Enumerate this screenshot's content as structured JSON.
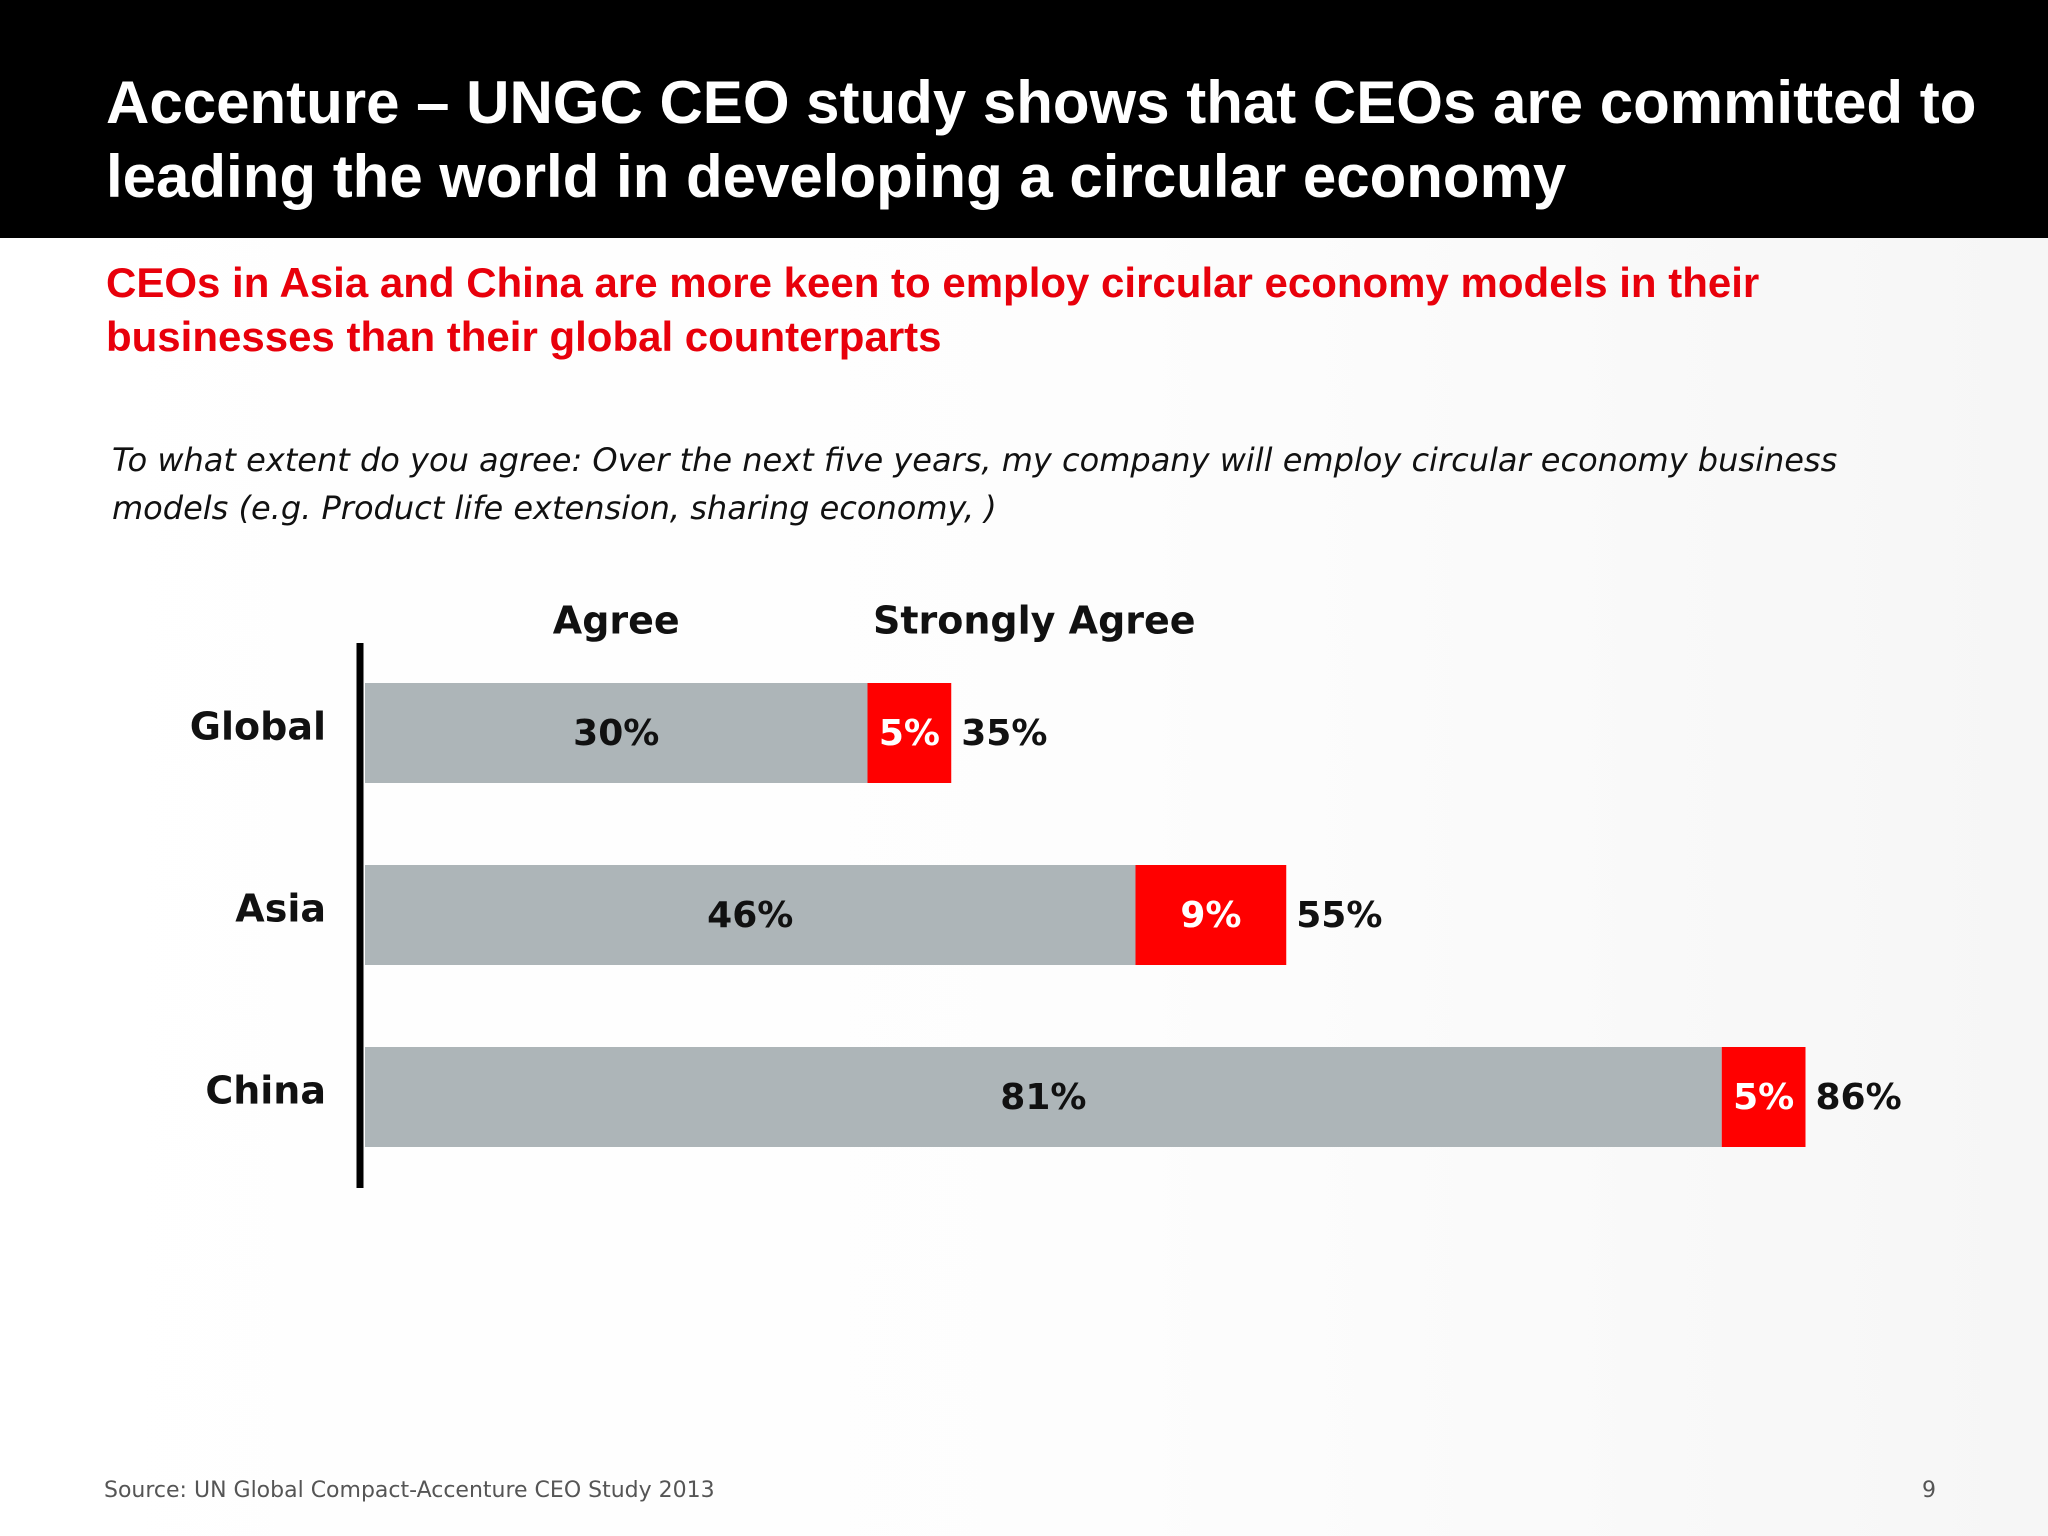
{
  "slide": {
    "title": "Accenture – UNGC CEO study shows that CEOs are committed to leading the world in developing a circular economy",
    "subtitle": "CEOs in Asia and China are more keen to employ circular economy models in their businesses than their global counterparts",
    "question": "To what extent do you agree: Over the next five years, my company will employ circular economy business models (e.g. Product life extension, sharing economy,  )",
    "source": "Source: UN Global Compact-Accenture CEO Study 2013",
    "page_number": "9"
  },
  "colors": {
    "title_bar": "#000000",
    "subtitle": "#e8000b",
    "agree_bar": "#adb5b8",
    "strongly_agree_bar": "#ff0000",
    "axis": "#000000"
  },
  "chart_data": {
    "type": "bar",
    "orientation": "horizontal",
    "stacked": true,
    "categories": [
      "Global",
      "Asia",
      "China"
    ],
    "series": [
      {
        "name": "Agree",
        "values": [
          30,
          46,
          81
        ],
        "labels": [
          "30%",
          "46%",
          "81%"
        ]
      },
      {
        "name": "Strongly Agree",
        "values": [
          5,
          9,
          5
        ],
        "labels": [
          "5%",
          "9%",
          "5%"
        ]
      }
    ],
    "totals": [
      35,
      55,
      86
    ],
    "total_labels": [
      "35%",
      "55%",
      "86%"
    ],
    "unit": "%",
    "xlim": [
      0,
      100
    ],
    "grid": false,
    "legend": "top"
  }
}
